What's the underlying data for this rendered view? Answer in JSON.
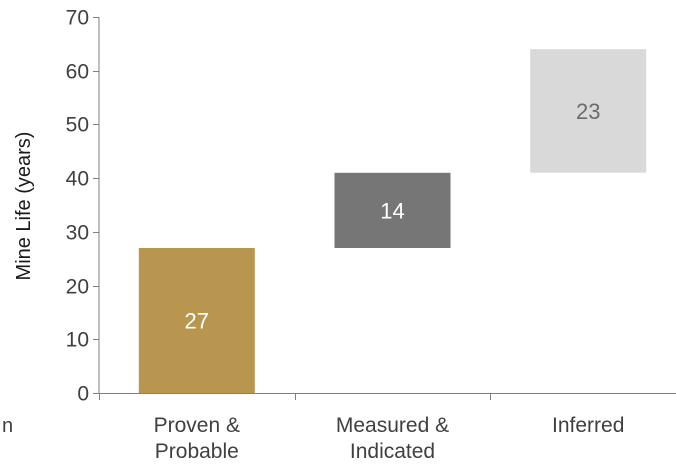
{
  "chart_data": {
    "type": "bar",
    "subtype": "waterfall",
    "title": "",
    "xlabel": "",
    "ylabel": "Mine Life (years)",
    "ylim": [
      0,
      70
    ],
    "yticks": [
      0,
      10,
      20,
      30,
      40,
      50,
      60,
      70
    ],
    "grid": false,
    "legend": "none",
    "categories": [
      [
        "Proven &",
        "Probable"
      ],
      [
        "Measured &",
        "Indicated"
      ],
      [
        "Inferred"
      ]
    ],
    "values": [
      27,
      14,
      23
    ],
    "bases": [
      0,
      27,
      41
    ],
    "data_labels": [
      "27",
      "14",
      "23"
    ],
    "colors": [
      "#b8964f",
      "#767676",
      "#d9d9d9"
    ],
    "label_colors": [
      "#ffffff",
      "#ffffff",
      "#6b6b6b"
    ]
  },
  "stray_text": "n"
}
